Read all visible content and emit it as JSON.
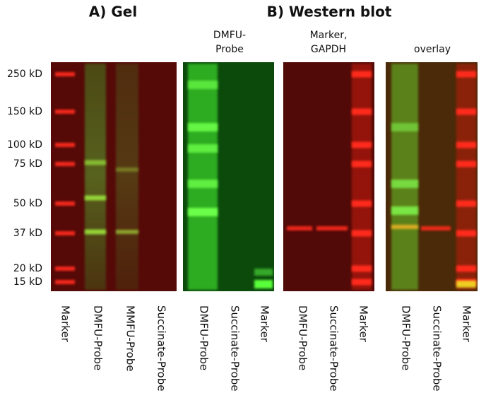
{
  "panel_a": {
    "title": "A) Gel",
    "size_markers": [
      "250 kD",
      "150 kD",
      "100 kD",
      "75 kD",
      "50 kD",
      "37 kD",
      "20 kD",
      "15 kD"
    ],
    "lanes": [
      "Marker",
      "DMFU-Probe",
      "MMFU-Probe",
      "Succinate-Probe"
    ]
  },
  "panel_b": {
    "title": "B) Western blot",
    "blots": [
      {
        "label": [
          "DMFU-",
          "Probe"
        ],
        "lanes": [
          "DMFU-Probe",
          "Succinate-Probe",
          "Marker"
        ]
      },
      {
        "label": [
          "Marker,",
          "GAPDH"
        ],
        "lanes": [
          "DMFU-Probe",
          "Succinate-Probe",
          "Marker"
        ]
      },
      {
        "label": [
          "overlay"
        ],
        "lanes": [
          "DMFU-Probe",
          "Succinate-Probe",
          "Marker"
        ]
      }
    ]
  }
}
